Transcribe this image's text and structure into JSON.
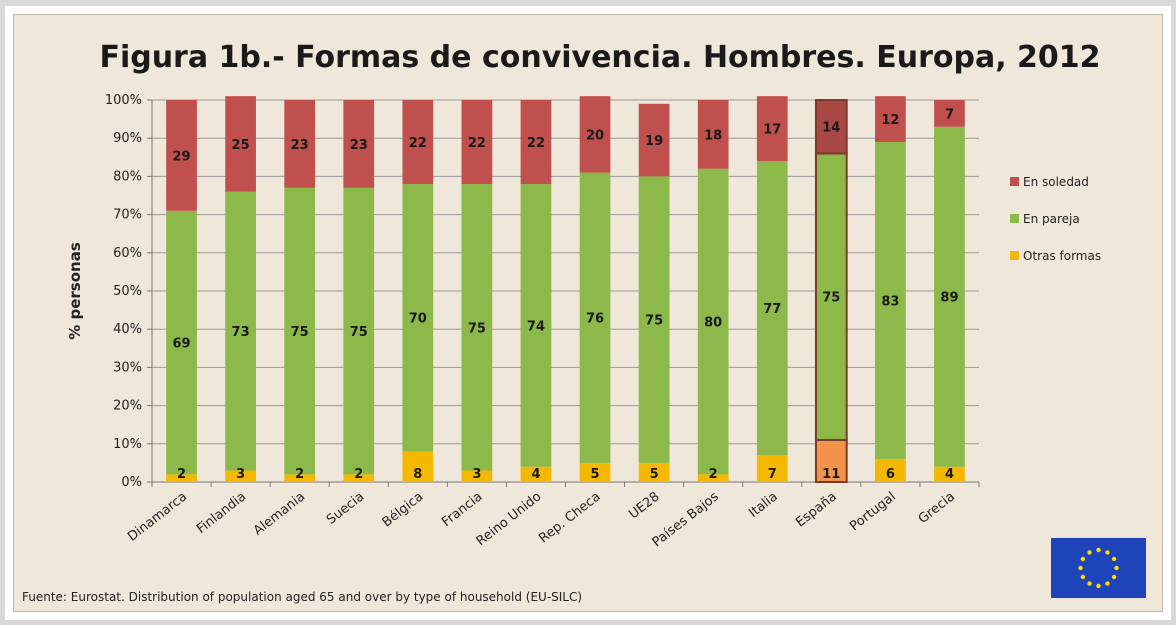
{
  "chart_data": {
    "type": "bar",
    "stacked": true,
    "percent_stacked": true,
    "title": "Figura 1b.- Formas de convivencia. Hombres. Europa, 2012",
    "ylabel": "% personas",
    "xlabel": "",
    "ylim": [
      0,
      100
    ],
    "y_ticks": [
      "0%",
      "10%",
      "20%",
      "30%",
      "40%",
      "50%",
      "60%",
      "70%",
      "80%",
      "90%",
      "100%"
    ],
    "grid": true,
    "legend_position": "right",
    "categories": [
      "Dinamarca",
      "Finlandia",
      "Alemania",
      "Suecia",
      "Bélgica",
      "Francia",
      "Reino Unido",
      "Rep. Checa",
      "UE28",
      "Países Bajos",
      "Italia",
      "España",
      "Portugal",
      "Grecia"
    ],
    "highlight_category": "España",
    "series": [
      {
        "name": "Otras formas",
        "color": "#f5b800",
        "highlight_color": "#f2934a",
        "values": [
          2,
          3,
          2,
          2,
          8,
          3,
          4,
          5,
          5,
          2,
          7,
          11,
          6,
          4
        ]
      },
      {
        "name": "En pareja",
        "color": "#8db84a",
        "highlight_color": "#8db84a",
        "values": [
          69,
          73,
          75,
          75,
          70,
          75,
          74,
          76,
          75,
          80,
          77,
          75,
          83,
          89
        ]
      },
      {
        "name": "En soledad",
        "color": "#c0504d",
        "highlight_color": "#a94744",
        "values": [
          29,
          25,
          23,
          23,
          22,
          22,
          22,
          20,
          19,
          18,
          17,
          14,
          12,
          7
        ]
      }
    ],
    "legend_order": [
      "En soledad",
      "En pareja",
      "Otras formas"
    ],
    "source": "Fuente: Eurostat.  Distribution of population aged 65 and over by type of household (EU-SILC)"
  },
  "logo": {
    "name": "eu-flag-icon",
    "background": "#1d44b8",
    "stars": "#ffdd00"
  }
}
